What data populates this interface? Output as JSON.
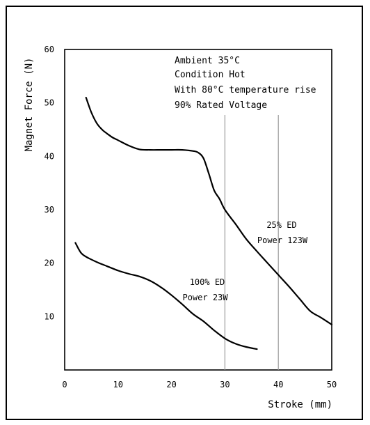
{
  "chart_data": {
    "type": "line",
    "xlabel": "Stroke (mm)",
    "ylabel": "Magnet Force (N)",
    "xlim": [
      0,
      50
    ],
    "ylim": [
      0,
      60
    ],
    "x_ticks": [
      "0",
      "10",
      "20",
      "30",
      "40",
      "50"
    ],
    "y_ticks": [
      "10",
      "20",
      "30",
      "40",
      "50",
      "60"
    ],
    "grid": "partial vertical lines at stroke 30 and 40",
    "annotations": [
      "Ambient 35°C",
      "Condition Hot",
      "With 80°C temperature rise",
      "90% Rated Voltage"
    ],
    "series": [
      {
        "label_lines": [
          "25% ED",
          "Power 123W"
        ],
        "color": "#000000",
        "x": [
          4,
          5,
          6,
          7,
          8,
          9,
          10,
          12,
          14,
          16,
          18,
          20,
          22,
          24,
          25,
          26,
          27,
          28,
          29,
          30,
          32,
          34,
          36,
          38,
          40,
          42,
          44,
          46,
          48,
          50
        ],
        "y": [
          51,
          48.2,
          46.2,
          45,
          44.2,
          43.5,
          43,
          42,
          41.3,
          41.2,
          41.2,
          41.2,
          41.2,
          41,
          40.7,
          39.6,
          36.7,
          33.6,
          32,
          30,
          27.3,
          24.5,
          22.2,
          20,
          17.8,
          15.6,
          13.3,
          11,
          9.8,
          8.5
        ]
      },
      {
        "label_lines": [
          "100% ED",
          "Power 23W"
        ],
        "color": "#000000",
        "x": [
          2,
          3,
          4,
          6,
          8,
          10,
          12,
          14,
          16,
          18,
          20,
          22,
          24,
          26,
          28,
          30,
          32,
          34,
          36
        ],
        "y": [
          23.8,
          22,
          21.2,
          20.2,
          19.4,
          18.6,
          18,
          17.5,
          16.7,
          15.5,
          14,
          12.3,
          10.5,
          9.1,
          7.4,
          5.9,
          4.9,
          4.3,
          3.9
        ]
      }
    ]
  }
}
